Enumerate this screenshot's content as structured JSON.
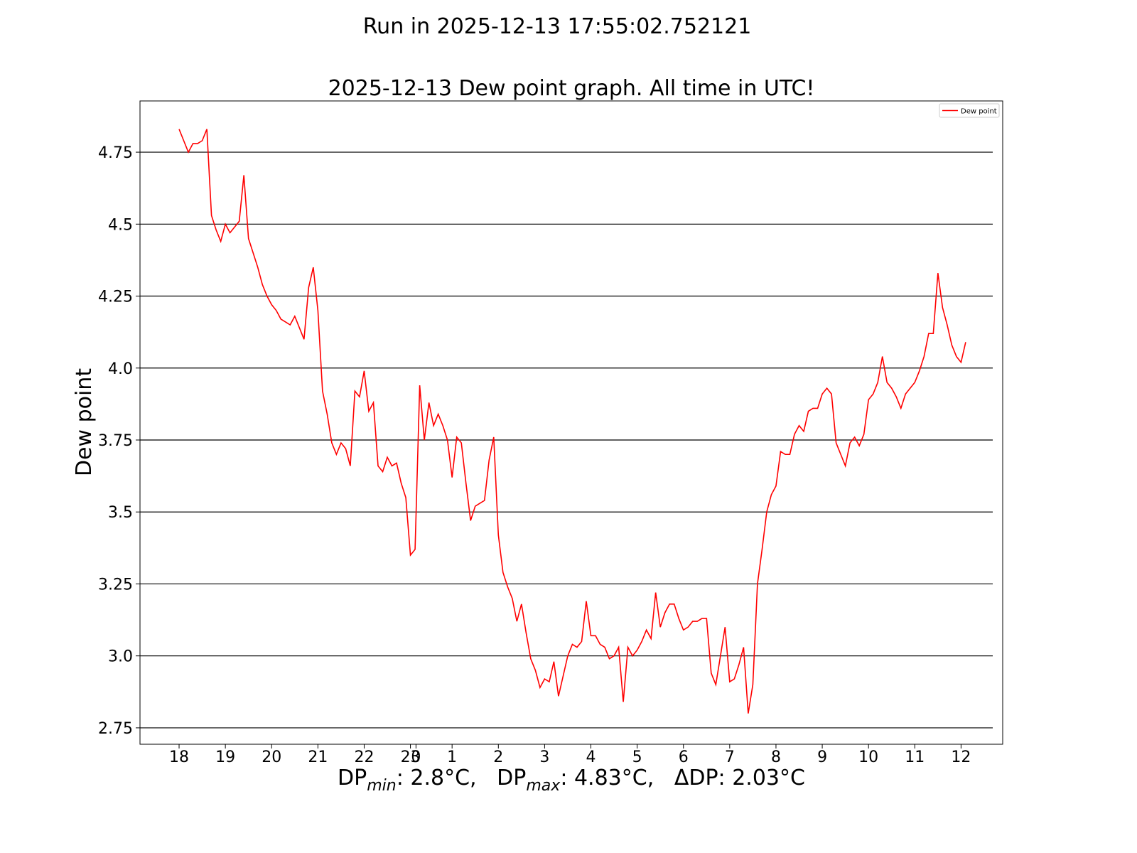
{
  "chart_data": {
    "type": "line",
    "suptitle": "Run in 2025-12-13 17:55:02.752121",
    "title": "2025-12-13 Dew point graph. All time in UTC!",
    "ylabel": "Dew point",
    "xlabel_parts": [
      "DP",
      "min",
      ": 2.8°C,   DP",
      "max",
      ": 4.83°C,   ΔDP: 2.03°C"
    ],
    "x": [
      0,
      0.1,
      0.2,
      0.3,
      0.4,
      0.5,
      0.6,
      0.7,
      0.8,
      0.9,
      1,
      1.1,
      1.2,
      1.3,
      1.4,
      1.5,
      1.6,
      1.7,
      1.8,
      1.9,
      2,
      2.1,
      2.2,
      2.3,
      2.4,
      2.5,
      2.6,
      2.7,
      2.8,
      2.9,
      3,
      3.1,
      3.2,
      3.3,
      3.4,
      3.5,
      3.6,
      3.7,
      3.8,
      3.9,
      4,
      4.1,
      4.2,
      4.3,
      4.4,
      4.5,
      4.6,
      4.7,
      4.8,
      4.9,
      5,
      5.1,
      5.2,
      5.3,
      5.4,
      5.5,
      5.6,
      5.7,
      5.8,
      5.9,
      6,
      6.1,
      6.2,
      6.3,
      6.4,
      6.5,
      6.6,
      6.7,
      6.8,
      6.9,
      7,
      7.1,
      7.2,
      7.3,
      7.4,
      7.5,
      7.6,
      7.7,
      7.8,
      7.9,
      8,
      8.1,
      8.2,
      8.3,
      8.4,
      8.5,
      8.6,
      8.7,
      8.8,
      8.9,
      9,
      9.1,
      9.2,
      9.3,
      9.4,
      9.5,
      9.6,
      9.7,
      9.8,
      9.9,
      10,
      10.1,
      10.2,
      10.3,
      10.4,
      10.5,
      10.6,
      10.7,
      10.8,
      10.9,
      11,
      11.1,
      11.2,
      11.3,
      11.4,
      11.5,
      11.6,
      11.7,
      11.8,
      11.9,
      12,
      12.1,
      12.2,
      12.3,
      12.4,
      12.5,
      12.6,
      12.7,
      12.8,
      12.9,
      13,
      13.1,
      13.2,
      13.3,
      13.4,
      13.5,
      13.6,
      13.7,
      13.8,
      13.9,
      14,
      14.1,
      14.2,
      14.3,
      14.4,
      14.5,
      14.6,
      14.7,
      14.8,
      14.9,
      15,
      15.1,
      15.2,
      15.3,
      15.4,
      15.5,
      15.6,
      15.7,
      15.8,
      15.9,
      16,
      16.1,
      16.2,
      16.3,
      16.4,
      16.5,
      16.6,
      16.7,
      16.8,
      16.9,
      17
    ],
    "series": [
      {
        "name": "Dew point",
        "color": "#ff0000",
        "values": [
          4.83,
          4.79,
          4.75,
          4.78,
          4.78,
          4.79,
          4.83,
          4.53,
          4.48,
          4.44,
          4.5,
          4.47,
          4.49,
          4.51,
          4.67,
          4.45,
          4.4,
          4.35,
          4.29,
          4.25,
          4.22,
          4.2,
          4.17,
          4.16,
          4.15,
          4.18,
          4.14,
          4.1,
          4.28,
          4.35,
          4.2,
          3.92,
          3.84,
          3.74,
          3.7,
          3.74,
          3.72,
          3.66,
          3.92,
          3.9,
          3.99,
          3.85,
          3.88,
          3.66,
          3.64,
          3.69,
          3.66,
          3.67,
          3.6,
          3.55,
          3.35,
          3.37,
          3.94,
          3.75,
          3.88,
          3.8,
          3.84,
          3.8,
          3.75,
          3.62,
          3.76,
          3.74,
          3.6,
          3.47,
          3.52,
          3.53,
          3.54,
          3.68,
          3.76,
          3.42,
          3.29,
          3.24,
          3.2,
          3.12,
          3.18,
          3.08,
          2.99,
          2.95,
          2.89,
          2.92,
          2.91,
          2.98,
          2.86,
          2.93,
          3.0,
          3.04,
          3.03,
          3.05,
          3.19,
          3.07,
          3.07,
          3.04,
          3.03,
          2.99,
          3.0,
          3.03,
          2.84,
          3.03,
          3.0,
          3.02,
          3.05,
          3.09,
          3.06,
          3.22,
          3.1,
          3.15,
          3.18,
          3.18,
          3.13,
          3.09,
          3.1,
          3.12,
          3.12,
          3.13,
          3.13,
          2.94,
          2.9,
          3.0,
          3.1,
          2.91,
          2.92,
          2.97,
          3.03,
          2.8,
          2.9,
          3.25,
          3.37,
          3.5,
          3.56,
          3.59,
          3.71,
          3.7,
          3.7,
          3.77,
          3.8,
          3.78,
          3.85,
          3.86,
          3.86,
          3.91,
          3.93,
          3.91,
          3.74,
          3.7,
          3.66,
          3.74,
          3.76,
          3.73,
          3.77,
          3.89,
          3.91,
          3.95,
          4.04,
          3.95,
          3.93,
          3.9,
          3.86,
          3.91,
          3.93,
          3.95,
          3.99,
          4.04,
          4.12,
          4.12,
          4.33,
          4.21,
          4.15,
          4.08,
          4.04,
          4.02,
          4.09
        ]
      }
    ],
    "xlim": [
      -0.845,
      17.8
    ],
    "xticks": [
      {
        "value": 0,
        "label": "18"
      },
      {
        "value": 1,
        "label": "19"
      },
      {
        "value": 2,
        "label": "20"
      },
      {
        "value": 3,
        "label": "21"
      },
      {
        "value": 4,
        "label": "22"
      },
      {
        "value": 5,
        "label": "23"
      },
      {
        "value": 5.12,
        "label": "0"
      },
      {
        "value": 5.9,
        "label": "1"
      },
      {
        "value": 6.9,
        "label": "2"
      },
      {
        "value": 7.9,
        "label": "3"
      },
      {
        "value": 8.9,
        "label": "4"
      },
      {
        "value": 9.9,
        "label": "5"
      },
      {
        "value": 10.9,
        "label": "6"
      },
      {
        "value": 11.9,
        "label": "7"
      },
      {
        "value": 12.9,
        "label": "8"
      },
      {
        "value": 13.9,
        "label": "9"
      },
      {
        "value": 14.9,
        "label": "10"
      },
      {
        "value": 15.9,
        "label": "11"
      },
      {
        "value": 16.9,
        "label": "12"
      }
    ],
    "ylim": [
      2.693,
      4.928
    ],
    "yticks": [
      2.75,
      {
        "value": 3,
        "label": "3.0"
      },
      3.25,
      3.5,
      3.75,
      {
        "value": 4,
        "label": "4.0"
      },
      4.25,
      4.5,
      4.75
    ],
    "grid": true,
    "legend": "upper right"
  }
}
